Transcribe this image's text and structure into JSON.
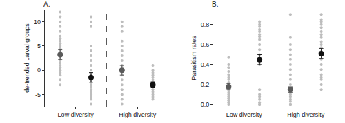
{
  "chart_data": [
    {
      "type": "scatter",
      "panel_label": "A.",
      "y_label": "de-trended Larval groups",
      "xlim": [
        0.5,
        4.5
      ],
      "xticks": [
        {
          "value": 1.5,
          "label": "Low diversity"
        },
        {
          "value": 3.5,
          "label": "High diversity"
        }
      ],
      "ylim": [
        -7.5,
        12.5
      ],
      "yticks": [
        -5,
        0,
        5,
        10
      ],
      "reference_line": {
        "x": 2.5,
        "line_style": "dashed",
        "color": "#444444"
      },
      "point_color": "#bdbdbd",
      "groups": [
        {
          "x": 1,
          "points": [
            12,
            11,
            10,
            9,
            8,
            7,
            6.5,
            6,
            5.5,
            5,
            4.5,
            4,
            3.5,
            3,
            2.5,
            2,
            1.5,
            1,
            0.5,
            0,
            -0.5,
            -1,
            -2,
            -3
          ],
          "mean": 3.2,
          "error": 1.0,
          "color": "#5a5a5a"
        },
        {
          "x": 2,
          "points": [
            11,
            10,
            9,
            5,
            4,
            3,
            2,
            1,
            0,
            -1,
            -1.5,
            -2,
            -2.5,
            -3,
            -3.5,
            -4,
            -4.5,
            -5,
            -5.5,
            -6,
            -7
          ],
          "mean": -1.5,
          "error": 1.0,
          "color": "#111111"
        },
        {
          "x": 3,
          "points": [
            10,
            9,
            8,
            6,
            5,
            4,
            3,
            2,
            1,
            0,
            -1,
            -2,
            -3,
            -4,
            -5,
            -6,
            -7
          ],
          "mean": 0,
          "error": 1.0,
          "color": "#5a5a5a"
        },
        {
          "x": 4,
          "points": [
            1,
            0,
            -0.5,
            -1,
            -1.5,
            -2,
            -2.5,
            -3,
            -3.5,
            -4,
            -4.5,
            -5,
            -5.5,
            -6
          ],
          "mean": -3,
          "error": 0.6,
          "color": "#111111"
        }
      ]
    },
    {
      "type": "scatter",
      "panel_label": "B.",
      "y_label": "Parasitism rates",
      "xlim": [
        0.5,
        4.5
      ],
      "xticks": [
        {
          "value": 1.5,
          "label": "Low diversity"
        },
        {
          "value": 3.5,
          "label": "High diversity"
        }
      ],
      "ylim": [
        -0.02,
        0.95
      ],
      "yticks": [
        {
          "value": 0,
          "label": "0.0"
        },
        0.2,
        0.4,
        0.6,
        0.8
      ],
      "reference_line": {
        "x": 2.5,
        "line_style": "dashed",
        "color": "#444444"
      },
      "point_color": "#bdbdbd",
      "groups": [
        {
          "x": 1,
          "points": [
            0.47,
            0.4,
            0.37,
            0.33,
            0.3,
            0.27,
            0.25,
            0.22,
            0.2,
            0.18,
            0.16,
            0.14,
            0.12,
            0.1,
            0.08,
            0.06,
            0.04,
            0.02,
            0
          ],
          "mean": 0.18,
          "error": 0.03,
          "color": "#5a5a5a"
        },
        {
          "x": 2,
          "points": [
            0.83,
            0.8,
            0.78,
            0.75,
            0.73,
            0.7,
            0.68,
            0.65,
            0.6,
            0.55,
            0.5,
            0.45,
            0.4,
            0.15,
            0.1,
            0.08,
            0.05,
            0.02,
            0,
            0
          ],
          "mean": 0.45,
          "error": 0.05,
          "color": "#111111"
        },
        {
          "x": 3,
          "points": [
            0.9,
            0.67,
            0.6,
            0.55,
            0.5,
            0.45,
            0.4,
            0.35,
            0.3,
            0.25,
            0.2,
            0.15,
            0.12,
            0.1,
            0.08,
            0.05,
            0.03,
            0,
            0,
            0
          ],
          "mean": 0.15,
          "error": 0.03,
          "color": "#5a5a5a"
        },
        {
          "x": 4,
          "points": [
            0.9,
            0.85,
            0.83,
            0.8,
            0.77,
            0.73,
            0.7,
            0.67,
            0.63,
            0.6,
            0.57,
            0.53,
            0.5,
            0.45,
            0.4,
            0.35,
            0.3,
            0.27,
            0.25,
            0.2,
            0.15
          ],
          "mean": 0.51,
          "error": 0.05,
          "color": "#111111"
        }
      ]
    }
  ]
}
